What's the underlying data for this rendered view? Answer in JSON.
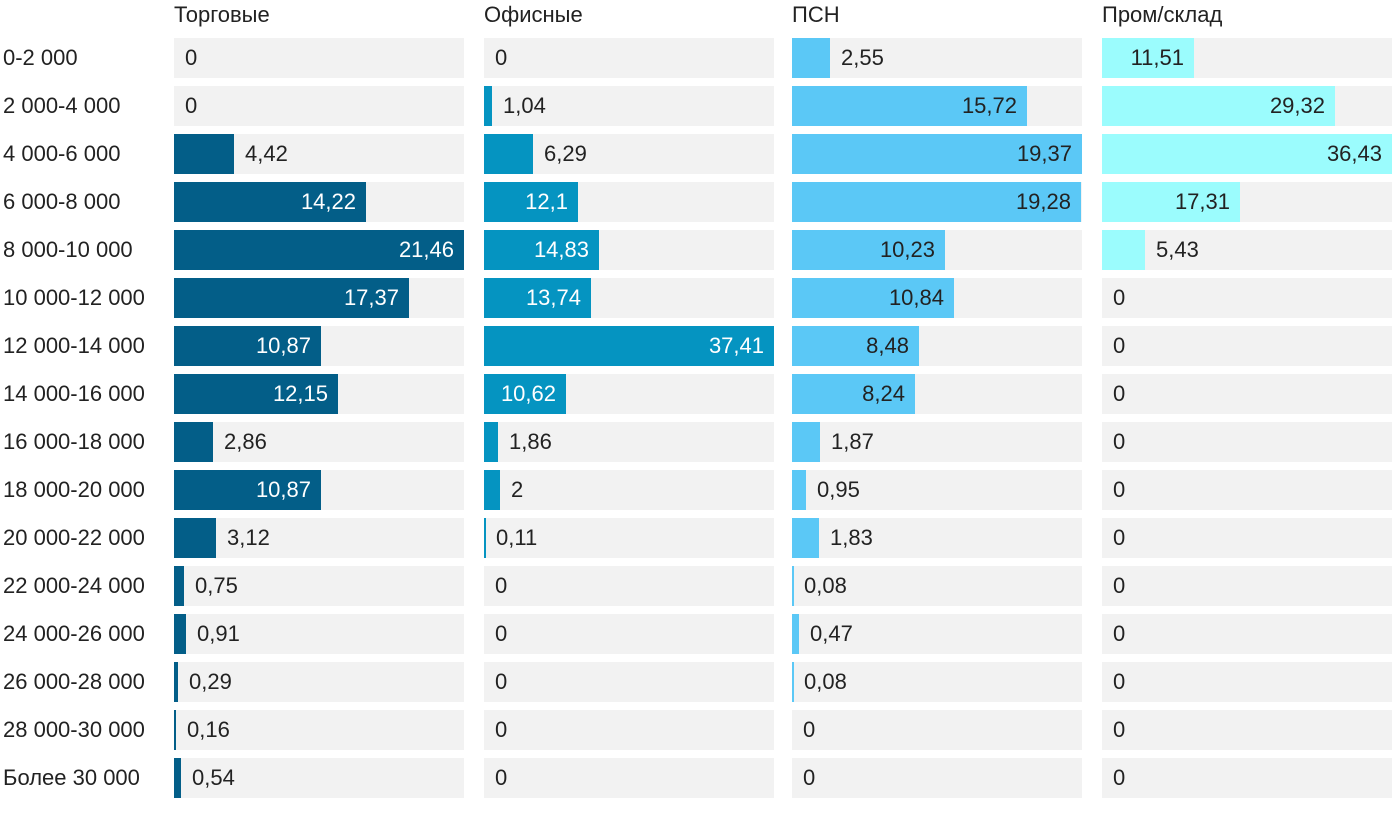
{
  "chart_data": {
    "type": "bar",
    "orientation": "horizontal",
    "categories": [
      "0-2 000",
      "2 000-4 000",
      "4 000-6 000",
      "6 000-8 000",
      "8 000-10 000",
      "10 000-12 000",
      "12 000-14 000",
      "14 000-16 000",
      "16 000-18 000",
      "18 000-20 000",
      "20 000-22 000",
      "22 000-24 000",
      "24 000-26 000",
      "26 000-28 000",
      "28 000-30 000",
      "Более 30 000"
    ],
    "series": [
      {
        "name": "Торговые",
        "color": "#035e88",
        "values": [
          0,
          0,
          4.42,
          14.22,
          21.46,
          17.37,
          10.87,
          12.15,
          2.86,
          10.87,
          3.12,
          0.75,
          0.91,
          0.29,
          0.16,
          0.54
        ],
        "labels": [
          "0",
          "0",
          "4,42",
          "14,22",
          "21,46",
          "17,37",
          "10,87",
          "12,15",
          "2,86",
          "10,87",
          "3,12",
          "0,75",
          "0,91",
          "0,29",
          "0,16",
          "0,54"
        ]
      },
      {
        "name": "Офисные",
        "color": "#0594c1",
        "values": [
          0,
          1.04,
          6.29,
          12.1,
          14.83,
          13.74,
          37.41,
          10.62,
          1.86,
          2,
          0.11,
          0,
          0,
          0,
          0,
          0
        ],
        "labels": [
          "0",
          "1,04",
          "6,29",
          "12,1",
          "14,83",
          "13,74",
          "37,41",
          "10,62",
          "1,86",
          "2",
          "0,11",
          "0",
          "0",
          "0",
          "0",
          "0"
        ]
      },
      {
        "name": "ПСН",
        "color": "#5bc8f6",
        "values": [
          2.55,
          15.72,
          19.37,
          19.28,
          10.23,
          10.84,
          8.48,
          8.24,
          1.87,
          0.95,
          1.83,
          0.08,
          0.47,
          0.08,
          0,
          0
        ],
        "labels": [
          "2,55",
          "15,72",
          "19,37",
          "19,28",
          "10,23",
          "10,84",
          "8,48",
          "8,24",
          "1,87",
          "0,95",
          "1,83",
          "0,08",
          "0,47",
          "0,08",
          "0",
          "0"
        ]
      },
      {
        "name": "Пром/склад",
        "color": "#9bfcfd",
        "values": [
          11.51,
          29.32,
          36.43,
          17.31,
          5.43,
          0,
          0,
          0,
          0,
          0,
          0,
          0,
          0,
          0,
          0,
          0
        ],
        "labels": [
          "11,51",
          "29,32",
          "36,43",
          "17,31",
          "5,43",
          "0",
          "0",
          "0",
          "0",
          "0",
          "0",
          "0",
          "0",
          "0",
          "0",
          "0"
        ]
      }
    ],
    "panel_max": [
      21.46,
      37.41,
      19.37,
      36.43
    ],
    "label_colors": {
      "inside_dark": "#ffffff",
      "inside_light": "#222222",
      "outside": "#222222"
    },
    "track_color": "#f2f2f2",
    "grid": false,
    "legend": "none"
  }
}
